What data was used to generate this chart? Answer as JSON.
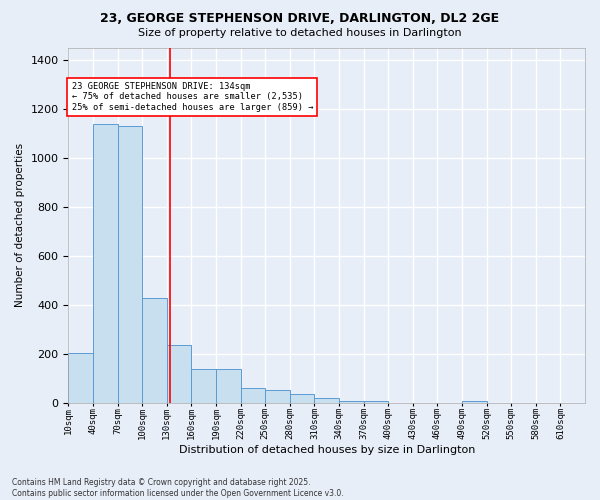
{
  "title1": "23, GEORGE STEPHENSON DRIVE, DARLINGTON, DL2 2GE",
  "title2": "Size of property relative to detached houses in Darlington",
  "xlabel": "Distribution of detached houses by size in Darlington",
  "ylabel": "Number of detached properties",
  "bins": [
    10,
    40,
    70,
    100,
    130,
    160,
    190,
    220,
    250,
    280,
    310,
    340,
    370,
    400,
    430,
    460,
    490,
    520,
    550,
    580,
    610
  ],
  "counts": [
    205,
    1140,
    1130,
    430,
    235,
    140,
    140,
    60,
    55,
    35,
    20,
    10,
    10,
    0,
    0,
    0,
    10,
    0,
    0,
    0
  ],
  "property_size": 134,
  "bar_color": "#c8dff0",
  "bar_edge_color": "#5b9bd5",
  "vline_color": "red",
  "annotation_text": "23 GEORGE STEPHENSON DRIVE: 134sqm\n← 75% of detached houses are smaller (2,535)\n25% of semi-detached houses are larger (859) →",
  "annotation_box_color": "white",
  "annotation_box_edge": "red",
  "footnote": "Contains HM Land Registry data © Crown copyright and database right 2025.\nContains public sector information licensed under the Open Government Licence v3.0.",
  "ylim": [
    0,
    1450
  ],
  "xlim": [
    10,
    640
  ],
  "figsize": [
    6.0,
    5.0
  ],
  "dpi": 100,
  "bg_color": "#e8eef8",
  "grid_color": "white",
  "yticks": [
    0,
    200,
    400,
    600,
    800,
    1000,
    1200,
    1400
  ]
}
